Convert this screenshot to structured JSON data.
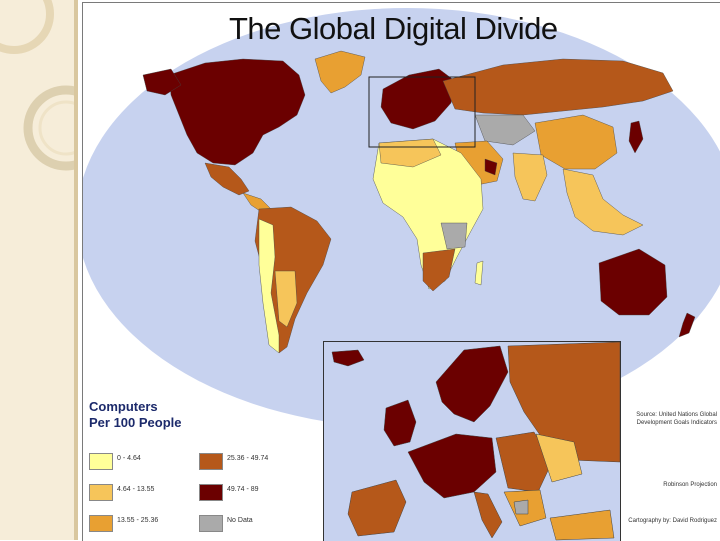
{
  "title": "The Global Digital Divide",
  "legend": {
    "title_line1": "Computers",
    "title_line2": "Per 100 People",
    "classes": [
      {
        "label": "0 - 4.64",
        "color": "#ffff99"
      },
      {
        "label": "4.64 - 13.55",
        "color": "#f6c55a"
      },
      {
        "label": "13.55 - 25.36",
        "color": "#e8a032"
      },
      {
        "label": "25.36 - 49.74",
        "color": "#b5581a"
      },
      {
        "label": "49.74 - 89",
        "color": "#6b0000"
      },
      {
        "label": "No Data",
        "color": "#aaaaaa"
      }
    ]
  },
  "credits": {
    "source": "Source: United Nations Global Development Goals Indicators",
    "projection": "Robinson Projection",
    "cartography": "Cartography by: David Rodriguez"
  },
  "colors": {
    "ocean": "#c7d2ef",
    "slide_strip": "#f6edd9"
  }
}
